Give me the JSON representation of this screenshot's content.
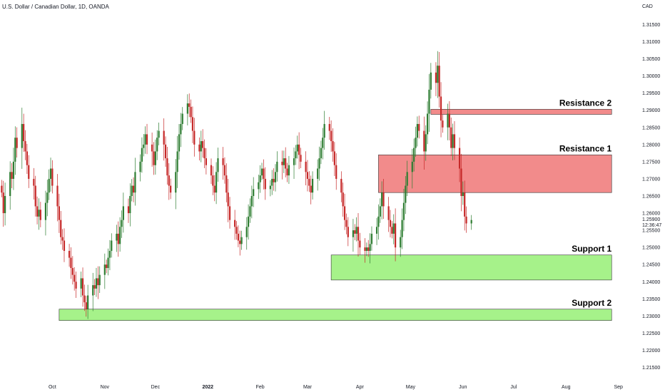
{
  "header": {
    "title": "U.S. Dollar / Canadian Dollar, 1D, OANDA"
  },
  "axis": {
    "currency": "CAD"
  },
  "price_tag": {
    "price": "1.25900",
    "countdown": "12:36:47"
  },
  "colors": {
    "up": "#2e7d32",
    "down": "#c62828",
    "resistance_fill": "#f28b8b",
    "resistance_stroke": "#c62828",
    "support_fill": "#a6f28a",
    "support_stroke": "#2e7d32"
  },
  "chart_data": {
    "type": "candlestick",
    "title": "U.S. Dollar / Canadian Dollar, 1D, OANDA",
    "ylabel": "CAD",
    "ylim": [
      1.212,
      1.318
    ],
    "x_range": [
      "2021-08-31",
      "2022-09-10"
    ],
    "y_ticks": [
      1.215,
      1.22,
      1.225,
      1.23,
      1.235,
      1.24,
      1.245,
      1.25,
      1.255,
      1.26,
      1.265,
      1.27,
      1.275,
      1.28,
      1.285,
      1.29,
      1.295,
      1.3,
      1.305,
      1.31,
      1.315
    ],
    "y_tick_labels": [
      "1.21500",
      "1.22000",
      "1.22500",
      "1.23000",
      "1.23500",
      "1.24000",
      "1.24500",
      "1.25000",
      "1.25500",
      "1.26000",
      "1.26500",
      "1.27000",
      "1.27500",
      "1.28000",
      "1.28500",
      "1.29000",
      "1.29500",
      "1.30000",
      "1.30500",
      "1.31000",
      "1.31500"
    ],
    "x_ticks": [
      {
        "label": "Oct",
        "date": "2021-10-01",
        "bold": false
      },
      {
        "label": "Nov",
        "date": "2021-11-01",
        "bold": false
      },
      {
        "label": "Dec",
        "date": "2021-12-01",
        "bold": false
      },
      {
        "label": "2022",
        "date": "2022-01-01",
        "bold": true
      },
      {
        "label": "Feb",
        "date": "2022-02-01",
        "bold": false
      },
      {
        "label": "Mar",
        "date": "2022-03-01",
        "bold": false
      },
      {
        "label": "Apr",
        "date": "2022-04-01",
        "bold": false
      },
      {
        "label": "May",
        "date": "2022-05-01",
        "bold": false
      },
      {
        "label": "Jun",
        "date": "2022-06-01",
        "bold": false
      },
      {
        "label": "Jul",
        "date": "2022-07-01",
        "bold": false
      },
      {
        "label": "Aug",
        "date": "2022-08-01",
        "bold": false
      },
      {
        "label": "Sep",
        "date": "2022-09-01",
        "bold": false
      }
    ],
    "series_start": "2021-09-01",
    "series_end": "2022-06-06",
    "closes": [
      1.266,
      1.26,
      1.265,
      1.272,
      1.27,
      1.275,
      1.282,
      1.279,
      1.286,
      1.281,
      1.278,
      1.274,
      1.27,
      1.268,
      1.262,
      1.259,
      1.261,
      1.258,
      1.263,
      1.266,
      1.27,
      1.273,
      1.268,
      1.262,
      1.258,
      1.253,
      1.252,
      1.249,
      1.247,
      1.244,
      1.242,
      1.24,
      1.238,
      1.241,
      1.236,
      1.234,
      1.232,
      1.236,
      1.239,
      1.238,
      1.241,
      1.239,
      1.242,
      1.245,
      1.244,
      1.247,
      1.249,
      1.252,
      1.254,
      1.251,
      1.256,
      1.258,
      1.262,
      1.26,
      1.265,
      1.268,
      1.266,
      1.272,
      1.275,
      1.279,
      1.28,
      1.283,
      1.28,
      1.278,
      1.274,
      1.278,
      1.282,
      1.284,
      1.28,
      1.276,
      1.271,
      1.268,
      1.266,
      1.272,
      1.278,
      1.283,
      1.286,
      1.289,
      1.292,
      1.291,
      1.288,
      1.284,
      1.28,
      1.278,
      1.281,
      1.279,
      1.276,
      1.274,
      1.271,
      1.268,
      1.266,
      1.272,
      1.276,
      1.274,
      1.271,
      1.266,
      1.262,
      1.258,
      1.256,
      1.254,
      1.252,
      1.251,
      1.253,
      1.256,
      1.259,
      1.262,
      1.265,
      1.267,
      1.269,
      1.271,
      1.273,
      1.27,
      1.267,
      1.268,
      1.27,
      1.269,
      1.272,
      1.275,
      1.274,
      1.276,
      1.273,
      1.271,
      1.274,
      1.276,
      1.278,
      1.28,
      1.277,
      1.275,
      1.272,
      1.27,
      1.268,
      1.266,
      1.27,
      1.273,
      1.276,
      1.279,
      1.282,
      1.286,
      1.284,
      1.281,
      1.278,
      1.274,
      1.27,
      1.266,
      1.262,
      1.258,
      1.256,
      1.253,
      1.255,
      1.254,
      1.256,
      1.252,
      1.25,
      1.249,
      1.25,
      1.249,
      1.251,
      1.254,
      1.256,
      1.259,
      1.262,
      1.266,
      1.262,
      1.258,
      1.256,
      1.254,
      1.257,
      1.25,
      1.253,
      1.258,
      1.263,
      1.268,
      1.272,
      1.275,
      1.279,
      1.282,
      1.286,
      1.284,
      1.278,
      1.283,
      1.289,
      1.296,
      1.301,
      1.298,
      1.303,
      1.294,
      1.287,
      1.285,
      1.289,
      1.285,
      1.279,
      1.283,
      1.279,
      1.273,
      1.265,
      1.266,
      1.259,
      1.257,
      1.258,
      1.259,
      1.259
    ],
    "zones": [
      {
        "label": "Resistance 2",
        "kind": "resistance",
        "top": 1.2903,
        "bottom": 1.2888,
        "start": "2022-05-13",
        "end": "2022-08-28"
      },
      {
        "label": "Resistance 1",
        "kind": "resistance",
        "top": 1.277,
        "bottom": 1.266,
        "start": "2022-04-12",
        "end": "2022-08-28"
      },
      {
        "label": "Support 1",
        "kind": "support",
        "top": 1.2478,
        "bottom": 1.2405,
        "start": "2022-03-15",
        "end": "2022-08-28"
      },
      {
        "label": "Support 2",
        "kind": "support",
        "top": 1.232,
        "bottom": 1.2287,
        "start": "2021-10-05",
        "end": "2022-08-28"
      }
    ]
  }
}
